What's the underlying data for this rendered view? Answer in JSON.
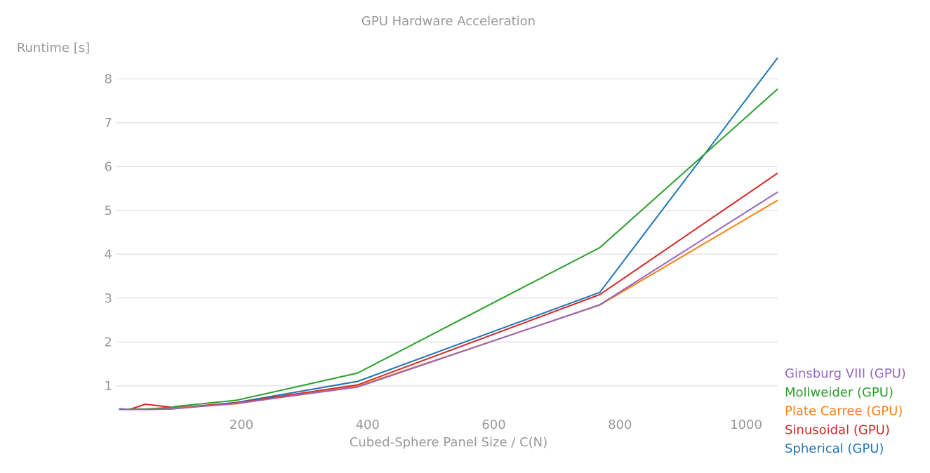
{
  "chart_data": {
    "type": "line",
    "title": "GPU Hardware Acceleration",
    "xlabel": "Cubed-Sphere Panel Size / C(N)",
    "ylabel": "Runtime [s]",
    "xlim": [
      2,
      1050
    ],
    "ylim": [
      0.42,
      8.55
    ],
    "xticks": [
      200,
      400,
      600,
      800,
      1000
    ],
    "yticks": [
      1,
      2,
      3,
      4,
      5,
      6,
      7,
      8
    ],
    "grid": "horizontal",
    "legend_position": "bottom-right",
    "x": [
      6,
      24,
      48,
      90,
      96,
      192,
      384,
      768,
      1050
    ],
    "series": [
      {
        "name": "Ginsburg VIII (GPU)",
        "color": "#9467bd",
        "values": [
          0.48,
          0.46,
          0.46,
          0.47,
          0.48,
          0.6,
          0.97,
          2.85,
          5.42
        ]
      },
      {
        "name": "Mollweider (GPU)",
        "color": "#2ca02c",
        "values": [
          0.46,
          0.47,
          0.47,
          0.51,
          0.53,
          0.67,
          1.29,
          4.15,
          7.77
        ]
      },
      {
        "name": "Plate Carree (GPU)",
        "color": "#ff7f0e",
        "values": [
          0.46,
          0.47,
          0.47,
          0.48,
          0.49,
          0.59,
          0.99,
          2.84,
          5.23
        ]
      },
      {
        "name": "Sinusoidal (GPU)",
        "color": "#d62728",
        "values": [
          0.46,
          0.47,
          0.58,
          0.51,
          0.5,
          0.61,
          1.02,
          3.08,
          5.85
        ]
      },
      {
        "name": "Spherical (GPU)",
        "color": "#1f77b4",
        "values": [
          0.46,
          0.46,
          0.46,
          0.48,
          0.49,
          0.62,
          1.1,
          3.13,
          8.48
        ]
      }
    ]
  }
}
